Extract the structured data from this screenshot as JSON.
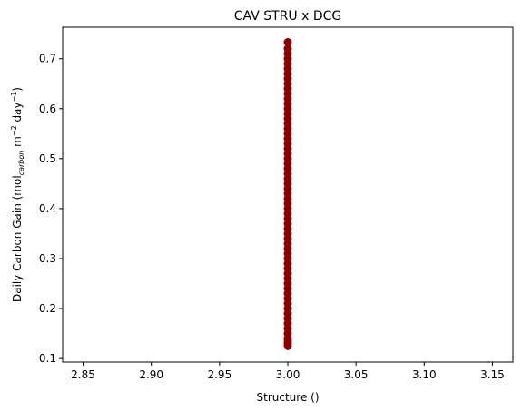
{
  "chart_data": {
    "type": "scatter",
    "title": "CAV STRU x DCG",
    "xlabel": "Structure ()",
    "ylabel": {
      "prefix": "Daily Carbon Gain (mol",
      "sub": "carbon",
      "mid1": " m",
      "sup1": "−2",
      "mid2": " day",
      "sup2": "−1",
      "suffix": ")"
    },
    "xlim": [
      2.835,
      3.165
    ],
    "ylim": [
      0.093,
      0.763
    ],
    "xticks": [
      2.85,
      2.9,
      2.95,
      3.0,
      3.05,
      3.1,
      3.15
    ],
    "xtick_labels": [
      "2.85",
      "2.90",
      "2.95",
      "3.00",
      "3.05",
      "3.10",
      "3.15"
    ],
    "yticks": [
      0.1,
      0.2,
      0.3,
      0.4,
      0.5,
      0.6,
      0.7
    ],
    "ytick_labels": [
      "0.1",
      "0.2",
      "0.3",
      "0.4",
      "0.5",
      "0.6",
      "0.7"
    ],
    "grid": false,
    "marker_color": "#8b0000",
    "series": [
      {
        "x": [
          3,
          3,
          3,
          3,
          3,
          3,
          3,
          3,
          3,
          3,
          3,
          3,
          3,
          3,
          3,
          3,
          3,
          3,
          3,
          3,
          3,
          3,
          3,
          3,
          3,
          3,
          3,
          3,
          3,
          3,
          3,
          3,
          3,
          3,
          3,
          3,
          3,
          3,
          3,
          3,
          3,
          3,
          3,
          3,
          3,
          3,
          3,
          3,
          3,
          3,
          3,
          3,
          3,
          3,
          3,
          3,
          3,
          3,
          3,
          3,
          3,
          3,
          3
        ],
        "y": [
          0.125,
          0.13,
          0.135,
          0.14,
          0.15,
          0.16,
          0.17,
          0.18,
          0.19,
          0.2,
          0.21,
          0.22,
          0.23,
          0.24,
          0.25,
          0.26,
          0.27,
          0.28,
          0.29,
          0.3,
          0.31,
          0.32,
          0.33,
          0.34,
          0.35,
          0.36,
          0.37,
          0.38,
          0.39,
          0.4,
          0.41,
          0.42,
          0.43,
          0.44,
          0.45,
          0.46,
          0.47,
          0.48,
          0.49,
          0.5,
          0.51,
          0.52,
          0.53,
          0.54,
          0.55,
          0.56,
          0.57,
          0.58,
          0.59,
          0.6,
          0.61,
          0.62,
          0.63,
          0.64,
          0.65,
          0.66,
          0.67,
          0.68,
          0.69,
          0.7,
          0.71,
          0.72,
          0.733
        ]
      }
    ]
  }
}
